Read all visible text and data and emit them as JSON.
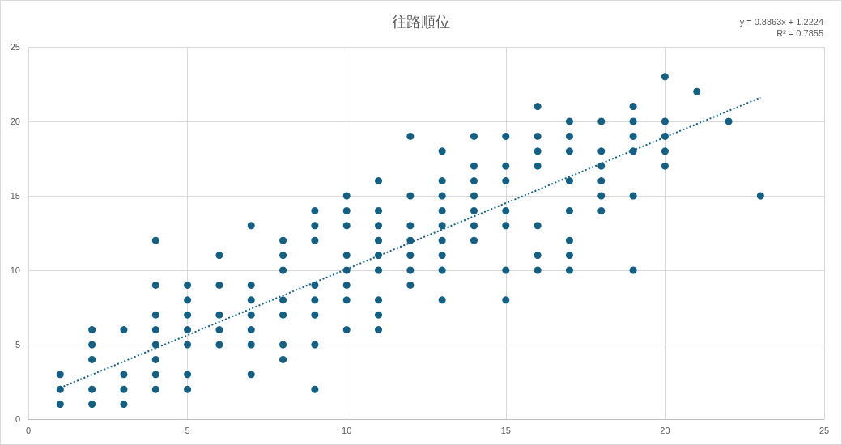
{
  "chart_data": {
    "type": "scatter",
    "title": "往路順位",
    "annotations": [
      "y = 0.8863x + 1.2224",
      "R² = 0.7855"
    ],
    "series": [
      {
        "color": "#156082",
        "x": [
          1,
          1,
          1,
          2,
          2,
          2,
          2,
          2,
          3,
          3,
          3,
          3,
          4,
          4,
          4,
          4,
          4,
          4,
          4,
          4,
          5,
          5,
          5,
          5,
          5,
          5,
          5,
          6,
          6,
          6,
          6,
          6,
          7,
          7,
          7,
          7,
          7,
          7,
          7,
          8,
          8,
          8,
          8,
          8,
          8,
          8,
          9,
          9,
          9,
          9,
          9,
          9,
          9,
          9,
          10,
          10,
          10,
          10,
          10,
          10,
          10,
          10,
          11,
          11,
          11,
          11,
          11,
          11,
          11,
          11,
          11,
          12,
          12,
          12,
          12,
          12,
          12,
          12,
          13,
          13,
          13,
          13,
          13,
          13,
          13,
          13,
          13,
          14,
          14,
          14,
          14,
          14,
          14,
          14,
          15,
          15,
          15,
          15,
          15,
          15,
          15,
          16,
          16,
          16,
          16,
          16,
          16,
          16,
          17,
          17,
          17,
          17,
          17,
          17,
          17,
          17,
          18,
          18,
          18,
          18,
          18,
          18,
          19,
          19,
          19,
          19,
          19,
          19,
          20,
          20,
          20,
          20,
          20,
          21,
          22,
          23
        ],
        "values": [
          3,
          2,
          1,
          6,
          5,
          4,
          2,
          1,
          6,
          3,
          2,
          1,
          12,
          9,
          7,
          6,
          5,
          4,
          3,
          2,
          9,
          8,
          7,
          6,
          5,
          3,
          2,
          11,
          9,
          7,
          6,
          5,
          13,
          9,
          8,
          7,
          6,
          5,
          3,
          12,
          11,
          10,
          8,
          7,
          5,
          4,
          14,
          13,
          12,
          9,
          8,
          7,
          5,
          2,
          15,
          14,
          13,
          11,
          10,
          9,
          8,
          6,
          16,
          14,
          13,
          12,
          11,
          10,
          8,
          7,
          6,
          19,
          15,
          13,
          12,
          11,
          10,
          9,
          18,
          16,
          15,
          14,
          13,
          12,
          11,
          10,
          8,
          19,
          17,
          16,
          15,
          14,
          13,
          12,
          19,
          17,
          16,
          14,
          13,
          10,
          8,
          21,
          19,
          18,
          17,
          13,
          11,
          10,
          20,
          19,
          18,
          16,
          14,
          12,
          11,
          10,
          20,
          18,
          17,
          16,
          15,
          14,
          21,
          20,
          19,
          18,
          15,
          10,
          23,
          20,
          19,
          18,
          17,
          22,
          20,
          15
        ]
      },
      {
        "type": "line",
        "color": "#156082",
        "line_style": "dotted",
        "marker": "none",
        "x": [
          1,
          23
        ],
        "values": [
          2.1,
          21.6
        ]
      }
    ],
    "xlim": [
      0,
      25
    ],
    "xticks": [
      0,
      5,
      10,
      15,
      20,
      25
    ],
    "ylim": [
      0,
      25
    ],
    "yticks": [
      0,
      5,
      10,
      15,
      20,
      25
    ],
    "grid": true,
    "marker": "circle"
  }
}
